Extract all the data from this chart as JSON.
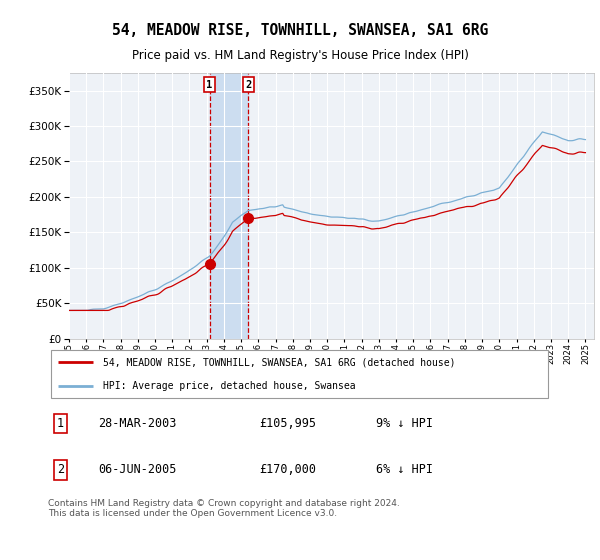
{
  "title": "54, MEADOW RISE, TOWNHILL, SWANSEA, SA1 6RG",
  "subtitle": "Price paid vs. HM Land Registry's House Price Index (HPI)",
  "legend_line1": "54, MEADOW RISE, TOWNHILL, SWANSEA, SA1 6RG (detached house)",
  "legend_line2": "HPI: Average price, detached house, Swansea",
  "transaction1_date": "28-MAR-2003",
  "transaction1_price": 105995,
  "transaction1_hpi": "9% ↓ HPI",
  "transaction2_date": "06-JUN-2005",
  "transaction2_price": 170000,
  "transaction2_hpi": "6% ↓ HPI",
  "footer": "Contains HM Land Registry data © Crown copyright and database right 2024.\nThis data is licensed under the Open Government Licence v3.0.",
  "hpi_color": "#7bafd4",
  "property_color": "#cc0000",
  "background_color": "#ffffff",
  "plot_bg_color": "#eef2f7",
  "vspan_color": "#ccddf0",
  "grid_color": "#ffffff",
  "ylim": [
    0,
    375000
  ],
  "yticks": [
    0,
    50000,
    100000,
    150000,
    200000,
    250000,
    300000,
    350000
  ],
  "start_year": 1995,
  "end_year": 2025,
  "transaction1_x": 2003.23,
  "transaction2_x": 2005.43
}
